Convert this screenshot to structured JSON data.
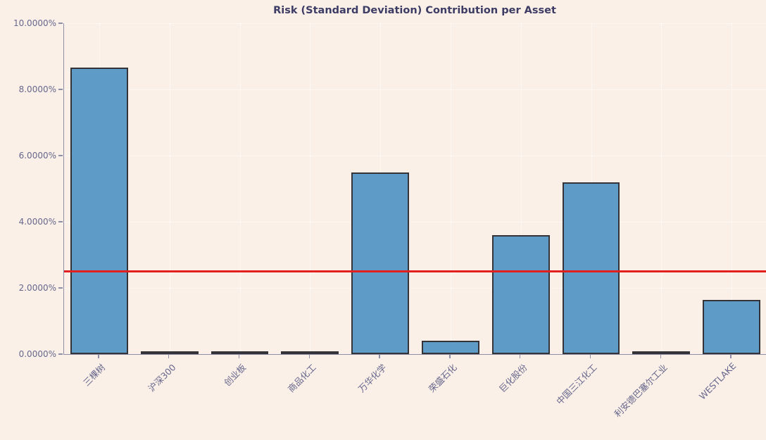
{
  "page": {
    "background_color": "#faf0e8"
  },
  "chart_data": {
    "type": "bar",
    "title": "Risk (Standard Deviation) Contribution per Asset",
    "categories": [
      "三棵树",
      "沪深300",
      "创业板",
      "商品化工",
      "万华化学",
      "荣盛石化",
      "巨化股份",
      "中国三江化工",
      "利安德巴塞尔工业",
      "WESTLAKE"
    ],
    "values": [
      8.65,
      0.0,
      0.0,
      0.0,
      5.5,
      0.4,
      3.6,
      5.2,
      0.0,
      1.63
    ],
    "value_unit": "%",
    "xlabel": "",
    "ylabel": "",
    "ylim": [
      0,
      10
    ],
    "y_tick_values": [
      0,
      2,
      4,
      6,
      8,
      10
    ],
    "y_tick_labels": [
      "0.0000%",
      "2.0000%",
      "4.0000%",
      "6.0000%",
      "8.0000%",
      "10.0000%"
    ],
    "reference_line": {
      "value": 2.5,
      "color": "#e32020"
    },
    "grid": "faint dotted horizontal and vertical",
    "legend": "none",
    "bar_fill_color": "#5e9bc7",
    "bar_edge_color": "#343438",
    "title_color": "#3c3c64",
    "tick_label_color": "#67678c",
    "axis_color": "#8e8ea6",
    "x_label_rotation_deg": 45
  }
}
